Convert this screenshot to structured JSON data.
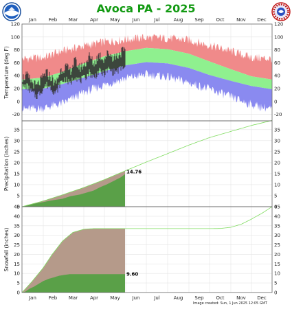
{
  "title": "Avoca PA - 2025",
  "footer": "Image created: Sun, 1 Jun 2025 12:05 GMT",
  "logos": {
    "left": "noaa-logo",
    "right": "nws-logo"
  },
  "colors": {
    "record_band": "#f08a8a",
    "normal_band": "#8ff08f",
    "record_low_band": "#8a8af0",
    "observed": "#333333",
    "precip_normal_fill": "#b59a8a",
    "precip_observed_fill": "#5aa048",
    "normal_line": "#7fdc5f",
    "title": "#129a12"
  },
  "chart_data": [
    {
      "type": "area",
      "panel": "temperature",
      "ylabel": "Temperature (deg F)",
      "ylim": [
        -30,
        120
      ],
      "yticks": [
        -20,
        0,
        20,
        40,
        60,
        80,
        100,
        120
      ],
      "months": [
        "Jan",
        "Feb",
        "Mar",
        "Apr",
        "May",
        "Jun",
        "Jul",
        "Aug",
        "Sep",
        "Oct",
        "Nov",
        "Dec"
      ],
      "x_days": [
        1,
        32,
        60,
        91,
        121,
        152,
        182,
        213,
        244,
        274,
        305,
        335,
        365
      ],
      "series": [
        {
          "name": "Record high",
          "x": [
            1,
            32,
            60,
            91,
            121,
            152,
            182,
            213,
            244,
            274,
            305,
            335,
            365
          ],
          "values": [
            66,
            68,
            78,
            86,
            92,
            96,
            99,
            98,
            95,
            87,
            78,
            68,
            66
          ]
        },
        {
          "name": "Normal high",
          "x": [
            1,
            32,
            60,
            91,
            121,
            152,
            182,
            213,
            244,
            274,
            305,
            335,
            365
          ],
          "values": [
            34,
            37,
            46,
            59,
            70,
            78,
            83,
            81,
            74,
            62,
            50,
            39,
            34
          ]
        },
        {
          "name": "Normal low",
          "x": [
            1,
            32,
            60,
            91,
            121,
            152,
            182,
            213,
            244,
            274,
            305,
            335,
            365
          ],
          "values": [
            19,
            20,
            27,
            37,
            47,
            56,
            61,
            59,
            52,
            41,
            32,
            24,
            19
          ]
        },
        {
          "name": "Record low",
          "x": [
            1,
            32,
            60,
            91,
            121,
            152,
            182,
            213,
            244,
            274,
            305,
            335,
            365
          ],
          "values": [
            -12,
            -10,
            -3,
            14,
            26,
            36,
            42,
            38,
            29,
            19,
            7,
            -5,
            -12
          ]
        },
        {
          "name": "Observed high",
          "x": [
            1,
            8,
            15,
            22,
            29,
            36,
            43,
            50,
            57,
            64,
            71,
            78,
            85,
            92,
            99,
            106,
            113,
            120,
            127,
            134,
            141,
            148,
            151
          ],
          "values": [
            36,
            40,
            31,
            23,
            33,
            45,
            38,
            27,
            48,
            54,
            47,
            63,
            52,
            57,
            70,
            58,
            73,
            66,
            76,
            68,
            72,
            79,
            74
          ]
        },
        {
          "name": "Observed low",
          "x": [
            1,
            8,
            15,
            22,
            29,
            36,
            43,
            50,
            57,
            64,
            71,
            78,
            85,
            92,
            99,
            106,
            113,
            120,
            127,
            134,
            141,
            148,
            151
          ],
          "values": [
            22,
            24,
            14,
            8,
            16,
            26,
            22,
            12,
            29,
            35,
            27,
            40,
            32,
            36,
            45,
            37,
            47,
            42,
            50,
            45,
            48,
            53,
            50
          ]
        }
      ]
    },
    {
      "type": "area",
      "panel": "precipitation",
      "ylabel": "Precipitation (inches)",
      "ylim": [
        0,
        39
      ],
      "yticks": [
        0,
        5,
        10,
        15,
        20,
        25,
        30,
        35
      ],
      "annotation": "14.76",
      "series": [
        {
          "name": "Normal accumulated",
          "x": [
            1,
            32,
            60,
            91,
            121,
            152,
            182,
            213,
            244,
            274,
            305,
            335,
            365
          ],
          "values": [
            0,
            2.6,
            5.4,
            8.7,
            12.3,
            16.4,
            20.3,
            24.1,
            28.0,
            31.4,
            34.2,
            36.9,
            39.2
          ]
        },
        {
          "name": "Observed accumulated",
          "x": [
            1,
            10,
            20,
            32,
            45,
            60,
            72,
            85,
            95,
            105,
            115,
            125,
            135,
            145,
            151
          ],
          "values": [
            0,
            0.6,
            1.4,
            2.1,
            2.9,
            3.6,
            4.8,
            5.5,
            6.4,
            7.3,
            8.9,
            10.2,
            11.8,
            13.4,
            14.76
          ]
        }
      ]
    },
    {
      "type": "area",
      "panel": "snowfall",
      "ylabel": "Snowfall (inches)",
      "ylim": [
        0,
        45
      ],
      "yticks": [
        0,
        5,
        10,
        15,
        20,
        25,
        30,
        35,
        40,
        45
      ],
      "annotation": "9.60",
      "series": [
        {
          "name": "Normal accumulated",
          "x": [
            1,
            15,
            32,
            45,
            60,
            75,
            91,
            105,
            121,
            152,
            182,
            213,
            244,
            274,
            290,
            305,
            320,
            335,
            350,
            365
          ],
          "values": [
            0,
            5.5,
            13,
            20,
            27,
            31.5,
            33.2,
            33.5,
            33.5,
            33.5,
            33.5,
            33.5,
            33.5,
            33.5,
            33.6,
            34.2,
            35.8,
            38.5,
            41.5,
            45
          ]
        },
        {
          "name": "Observed accumulated",
          "x": [
            1,
            6,
            12,
            18,
            25,
            32,
            40,
            48,
            55,
            62,
            70,
            80,
            151
          ],
          "values": [
            0,
            0.5,
            2.0,
            3.0,
            4.5,
            6.0,
            7.2,
            8.0,
            8.8,
            9.2,
            9.6,
            9.6,
            9.6
          ]
        }
      ]
    }
  ]
}
